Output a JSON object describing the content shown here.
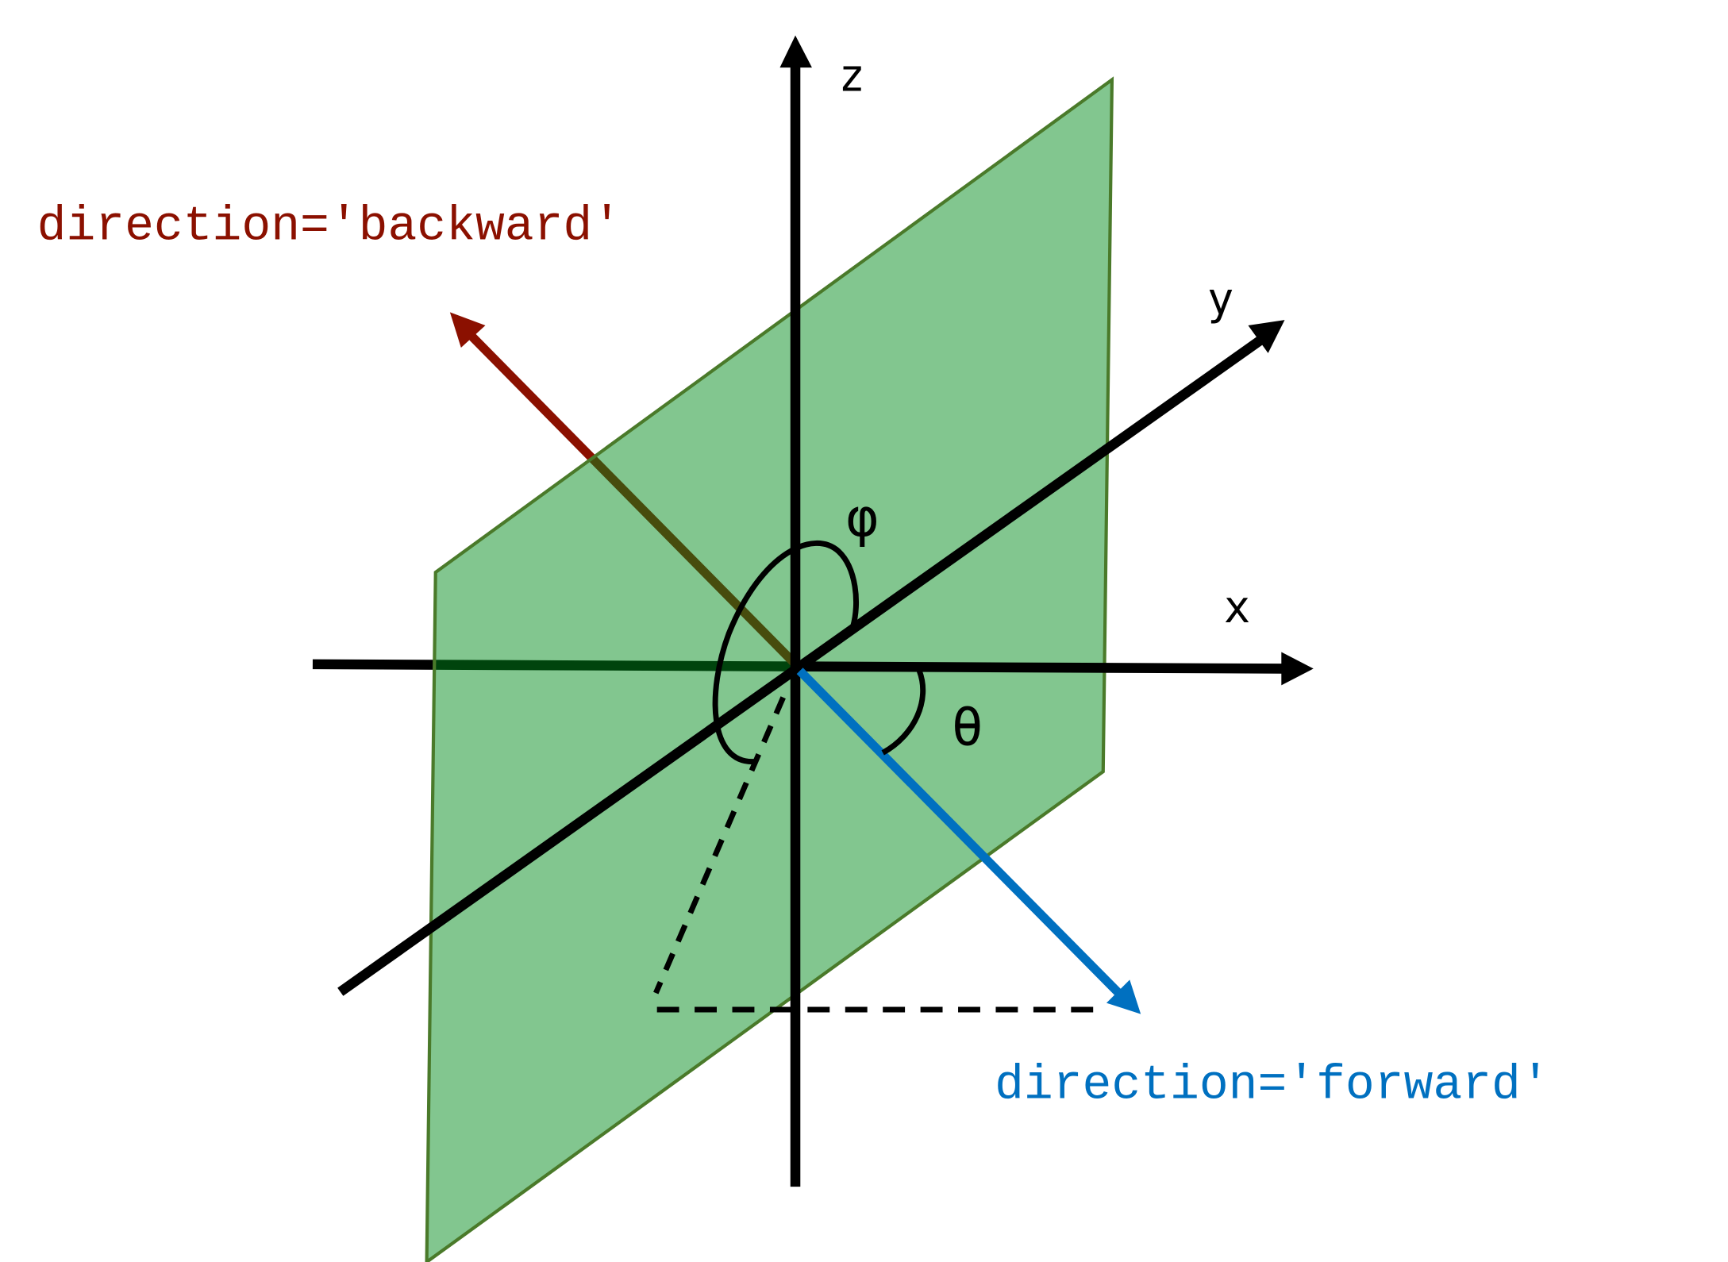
{
  "labels": {
    "z": "z",
    "y": "y",
    "x": "x",
    "phi": "φ",
    "theta": "θ",
    "backward": "direction='backward'",
    "forward": "direction='forward'"
  },
  "colors": {
    "backward": "#8b1000",
    "forward": "#0070c0",
    "plane_fill": "#008a1a",
    "plane_stroke": "#4a7a2a",
    "axes": "#000000"
  }
}
